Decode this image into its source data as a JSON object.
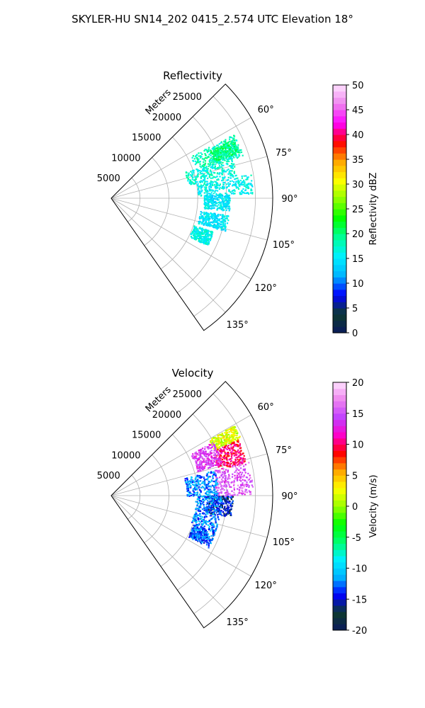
{
  "figure_title": "SKYLER-HU  SN14_202  0415_2.574 UTC Elevation 18°",
  "chart_data": [
    {
      "type": "polar-sector",
      "title": "Reflectivity",
      "radial_label": "Meters",
      "radial_ticks": [
        5000,
        10000,
        15000,
        20000,
        25000
      ],
      "radial_max": 28000,
      "azimuth_range_deg": [
        45,
        145
      ],
      "azimuth_ticks": [
        "60°",
        "75°",
        "90°",
        "105°",
        "120°",
        "135°"
      ],
      "azimuth_tick_values": [
        60,
        75,
        90,
        105,
        120,
        135
      ],
      "grid": true,
      "colorbar": {
        "label": "Reflectivity dBZ",
        "range": [
          0,
          50
        ],
        "ticks": [
          "0",
          "5",
          "10",
          "15",
          "20",
          "25",
          "30",
          "35",
          "40",
          "45",
          "50"
        ],
        "tick_values": [
          0,
          5,
          10,
          15,
          20,
          25,
          30,
          35,
          40,
          45,
          50
        ]
      },
      "echo_regions": [
        {
          "az": [
            62,
            72
          ],
          "r": [
            15500,
            24000
          ],
          "value": 18
        },
        {
          "az": [
            70,
            80
          ],
          "r": [
            13500,
            22000
          ],
          "value": 17
        },
        {
          "az": [
            80,
            88
          ],
          "r": [
            15000,
            24500
          ],
          "value": 16
        },
        {
          "az": [
            88,
            96
          ],
          "r": [
            16000,
            20500
          ],
          "value": 15
        },
        {
          "az": [
            98,
            106
          ],
          "r": [
            15500,
            20500
          ],
          "value": 15
        },
        {
          "az": [
            108,
            116
          ],
          "r": [
            15000,
            18500
          ],
          "value": 16
        },
        {
          "az": [
            64,
            70
          ],
          "r": [
            19000,
            23500
          ],
          "value": 20
        }
      ]
    },
    {
      "type": "polar-sector",
      "title": "Velocity",
      "radial_label": "Meters",
      "radial_ticks": [
        5000,
        10000,
        15000,
        20000,
        25000
      ],
      "radial_max": 28000,
      "azimuth_range_deg": [
        45,
        145
      ],
      "azimuth_ticks": [
        "60°",
        "75°",
        "90°",
        "105°",
        "120°",
        "135°"
      ],
      "azimuth_tick_values": [
        60,
        75,
        90,
        105,
        120,
        135
      ],
      "grid": true,
      "colorbar": {
        "label": "Velocity (m/s)",
        "range": [
          -20,
          20
        ],
        "ticks": [
          "-20",
          "-15",
          "-10",
          "-5",
          "0",
          "5",
          "10",
          "15",
          "20"
        ],
        "tick_values": [
          -20,
          -15,
          -10,
          -5,
          0,
          5,
          10,
          15,
          20
        ]
      },
      "echo_regions": [
        {
          "az": [
            60,
            66
          ],
          "r": [
            19500,
            24500
          ],
          "value": 2
        },
        {
          "az": [
            66,
            76
          ],
          "r": [
            19000,
            24000
          ],
          "value": 10
        },
        {
          "az": [
            62,
            74
          ],
          "r": [
            15500,
            20000
          ],
          "value": 14
        },
        {
          "az": [
            76,
            90
          ],
          "r": [
            18000,
            24500
          ],
          "value": 15
        },
        {
          "az": [
            76,
            90
          ],
          "r": [
            13000,
            18500
          ],
          "value": -12
        },
        {
          "az": [
            90,
            100
          ],
          "r": [
            16500,
            21000
          ],
          "value": -15
        },
        {
          "az": [
            90,
            108
          ],
          "r": [
            14500,
            19000
          ],
          "value": -12
        },
        {
          "az": [
            108,
            118
          ],
          "r": [
            15000,
            19000
          ],
          "value": -13
        }
      ]
    }
  ],
  "colors": {
    "reflectivity_scale": [
      "#0a1a5c",
      "#0d3a2e",
      "#0000ff",
      "#00b4ff",
      "#00f0ff",
      "#00ff9a",
      "#00ff00",
      "#8cff00",
      "#ffff00",
      "#ffa500",
      "#ff0000",
      "#ff00ff",
      "#ee82ee",
      "#ffe0ff"
    ],
    "velocity_scale": [
      "#0a1a5c",
      "#0d3a2e",
      "#0000ff",
      "#00b4ff",
      "#00f0ff",
      "#00ff6e",
      "#00ff00",
      "#9aff00",
      "#ffff00",
      "#ffa500",
      "#ff0000",
      "#ff00c8",
      "#c040ff",
      "#ee82ee",
      "#ffe0ff"
    ]
  }
}
